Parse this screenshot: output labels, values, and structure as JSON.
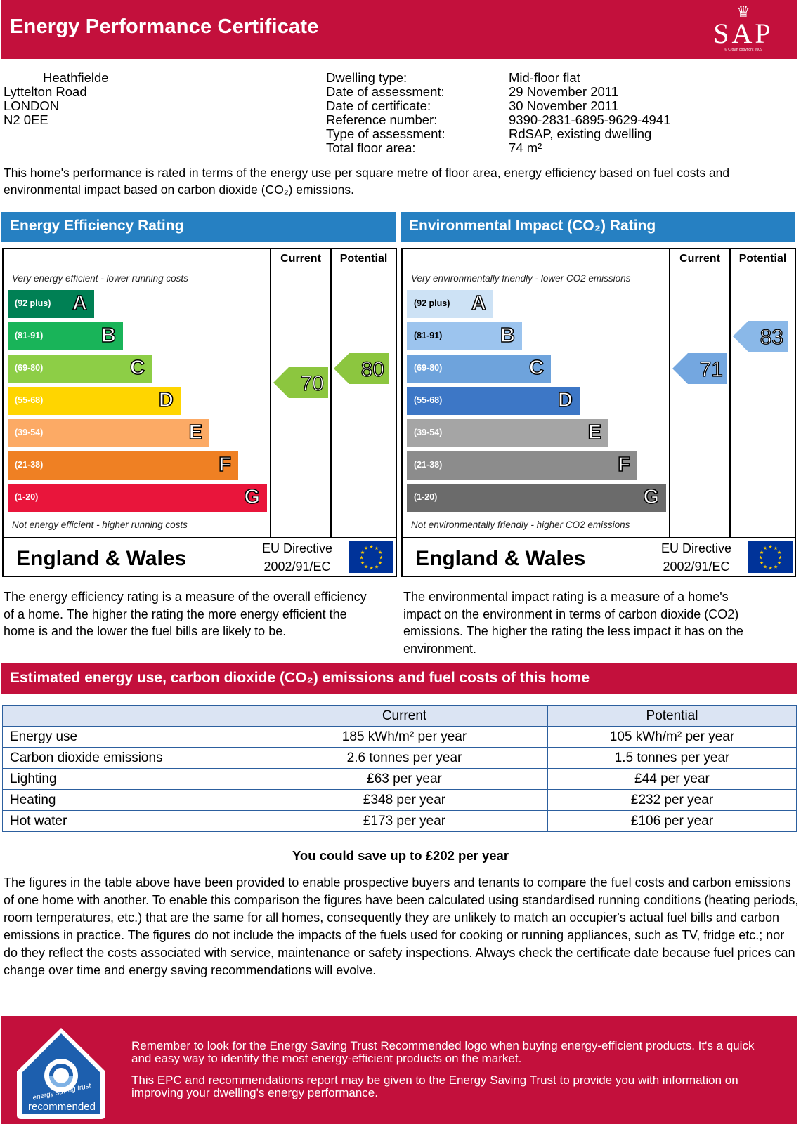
{
  "header": {
    "title": "Energy Performance Certificate",
    "logo_text": "SAP",
    "logo_small": "© Crown copyright 2009"
  },
  "address": {
    "line1": "Heathfielde",
    "line2": "Lyttelton Road",
    "line3": "LONDON",
    "line4": "N2 0EE"
  },
  "details": {
    "labels": [
      "Dwelling type:",
      "Date of assessment:",
      "Date of certificate:",
      "Reference number:",
      "Type of assessment:",
      "Total floor area:"
    ],
    "values": [
      "Mid-floor flat",
      "29 November 2011",
      "30 November 2011",
      "9390-2831-6895-9629-4941",
      "RdSAP, existing dwelling",
      "74 m²"
    ]
  },
  "intro": "This home's performance is rated in terms of the energy use per square metre of floor area, energy efficiency based on fuel costs and environmental impact based on carbon dioxide (CO₂) emissions.",
  "efficiency": {
    "title": "Energy Efficiency Rating",
    "col_current": "Current",
    "col_potential": "Potential",
    "top_note": "Very energy efficient - lower running costs",
    "bottom_note": "Not energy efficient - higher running costs",
    "region": "England & Wales",
    "directive_line1": "EU Directive",
    "directive_line2": "2002/91/EC",
    "current": "70",
    "potential": "80",
    "current_color": "#8cc63f",
    "potential_color": "#8cc63f",
    "bands": [
      {
        "range": "(92 plus)",
        "letter": "A",
        "color": "#008054"
      },
      {
        "range": "(81-91)",
        "letter": "B",
        "color": "#19b459"
      },
      {
        "range": "(69-80)",
        "letter": "C",
        "color": "#8dce46"
      },
      {
        "range": "(55-68)",
        "letter": "D",
        "color": "#ffd500"
      },
      {
        "range": "(39-54)",
        "letter": "E",
        "color": "#fcaa65"
      },
      {
        "range": "(21-38)",
        "letter": "F",
        "color": "#ef8023"
      },
      {
        "range": "(1-20)",
        "letter": "G",
        "color": "#e9153b"
      }
    ]
  },
  "environment": {
    "title": "Environmental Impact (CO₂) Rating",
    "col_current": "Current",
    "col_potential": "Potential",
    "top_note": "Very environmentally friendly - lower CO2 emissions",
    "bottom_note": "Not environmentally friendly - higher CO2 emissions",
    "region": "England & Wales",
    "directive_line1": "EU Directive",
    "directive_line2": "2002/91/EC",
    "current": "71",
    "potential": "83",
    "current_color": "#74a7e0",
    "potential_color": "#8ab8e8",
    "bands": [
      {
        "range": "(92 plus)",
        "letter": "A",
        "color": "#cde2f5"
      },
      {
        "range": "(81-91)",
        "letter": "B",
        "color": "#9cc4ee"
      },
      {
        "range": "(69-80)",
        "letter": "C",
        "color": "#6ea3dc"
      },
      {
        "range": "(55-68)",
        "letter": "D",
        "color": "#3d77c6"
      },
      {
        "range": "(39-54)",
        "letter": "E",
        "color": "#a5a5a5"
      },
      {
        "range": "(21-38)",
        "letter": "F",
        "color": "#8c8c8c"
      },
      {
        "range": "(1-20)",
        "letter": "G",
        "color": "#6b6b6b"
      }
    ]
  },
  "desc_left": "The energy efficiency rating is a measure of the overall efficiency of a home. The higher the rating the more energy efficient the home is and the lower the fuel bills are likely to be.",
  "desc_right": "The environmental impact rating is a measure of a home's impact on the environment in terms of carbon dioxide (CO2) emissions. The higher the rating the less impact it has on the environment.",
  "estimate": {
    "title": "Estimated energy use, carbon dioxide (CO₂) emissions and fuel costs of this home",
    "headers": [
      "",
      "Current",
      "Potential"
    ],
    "rows": [
      [
        "Energy use",
        "185 kWh/m² per year",
        "105 kWh/m² per year"
      ],
      [
        "Carbon dioxide emissions",
        "2.6 tonnes per year",
        "1.5 tonnes per year"
      ],
      [
        "Lighting",
        "£63 per year",
        "£44 per year"
      ],
      [
        "Heating",
        "£348 per year",
        "£232 per year"
      ],
      [
        "Hot water",
        "£173 per year",
        "£106 per year"
      ]
    ],
    "saving": "You could save up to £202 per year"
  },
  "paragraph": "The figures in the table above have been provided to enable prospective buyers and tenants to compare the fuel costs and carbon emissions of one home with another. To enable this comparison the figures have been calculated using standardised running conditions (heating periods, room temperatures, etc.) that are the same for all homes, consequently they are unlikely to match an occupier's actual fuel bills and carbon emissions in practice. The figures do not include the impacts of the fuels used for cooking or running appliances, such as TV, fridge etc.; nor do they reflect the costs associated with service, maintenance or safety inspections. Always check the certificate date because fuel prices can change over time and energy saving recommendations will evolve.",
  "footer": {
    "logo_line1": "energy saving trust",
    "logo_line2": "recommended",
    "p1": "Remember to look for the Energy Saving Trust Recommended logo when buying energy-efficient products. It's a quick and easy way to identify the most energy-efficient products on the market.",
    "p2": "This EPC and recommendations report may be given to the Energy Saving Trust to provide you with information on improving your dwelling's energy performance."
  }
}
